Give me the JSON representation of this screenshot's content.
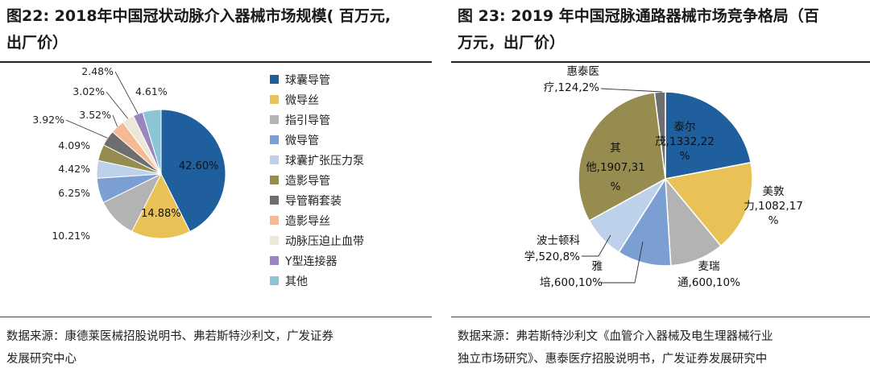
{
  "left": {
    "title_line1": "图22: 2018年中国冠状动脉介入器械市场规模( 百万元,",
    "title_line2": "出厂价）",
    "source_line1": "数据来源：康德莱医械招股说明书、弗若斯特沙利文，广发证券",
    "source_line2": "发展研究中心"
  },
  "right": {
    "title_line1": "图 23:  2019 年中国冠脉通路器械市场竞争格局（百",
    "title_line2": "万元，出厂价）",
    "source_line1": "数据来源：弗若斯特沙利文《血管介入器械及电生理器械行业",
    "source_line2": "独立市场研究》、惠泰医疗招股说明书，广发证券发展研究中"
  },
  "chart_data": [
    {
      "type": "pie",
      "title": "2018年中国冠状动脉介入器械市场规模( 百万元, 出厂价）",
      "legend_position": "right",
      "slices": [
        {
          "label": "球囊导管",
          "value": 42.6,
          "display": "42.60%",
          "color": "#1f5f9e"
        },
        {
          "label": "微导丝",
          "value": 14.88,
          "display": "14.88%",
          "color": "#e8c256"
        },
        {
          "label": "指引导管",
          "value": 10.21,
          "display": "10.21%",
          "color": "#b3b3b3"
        },
        {
          "label": "微导管",
          "value": 6.25,
          "display": "6.25%",
          "color": "#7b9fd3"
        },
        {
          "label": "球囊扩张压力泵",
          "value": 4.42,
          "display": "4.42%",
          "color": "#bdd2ea"
        },
        {
          "label": "造影导管",
          "value": 4.09,
          "display": "4.09%",
          "color": "#968c4f"
        },
        {
          "label": "导管鞘套装",
          "value": 3.92,
          "display": "3.92%",
          "color": "#6e6e6e"
        },
        {
          "label": "造影导丝",
          "value": 3.52,
          "display": "3.52%",
          "color": "#f5b994"
        },
        {
          "label": "动脉压迫止血带",
          "value": 3.02,
          "display": "3.02%",
          "color": "#ece7d6"
        },
        {
          "label": "Y型连接器",
          "value": 2.48,
          "display": "2.48%",
          "color": "#9a86bf"
        },
        {
          "label": "其他",
          "value": 4.61,
          "display": "4.61%",
          "color": "#8cc5d6"
        }
      ]
    },
    {
      "type": "pie",
      "title": "2019 年中国冠脉通路器械市场竞争格局（百万元，出厂价）",
      "slices": [
        {
          "label": "泰尔茂",
          "value": 1332,
          "share": 22,
          "label_lines": [
            "泰尔",
            "茂,1332,22",
            "%"
          ],
          "color": "#1f5f9e"
        },
        {
          "label": "美敦力",
          "value": 1082,
          "share": 17,
          "label_lines": [
            "美敦",
            "力,1082,17",
            "%"
          ],
          "color": "#e8c256"
        },
        {
          "label": "麦瑞通",
          "value": 600,
          "share": 10,
          "label_lines": [
            "麦瑞",
            "通,600,10%"
          ],
          "color": "#b3b3b3"
        },
        {
          "label": "雅培",
          "value": 600,
          "share": 10,
          "label_lines": [
            "雅",
            "培,600,10%"
          ],
          "color": "#7b9fd3"
        },
        {
          "label": "波士顿科学",
          "value": 520,
          "share": 8,
          "label_lines": [
            "波士顿科",
            "学,520,8%"
          ],
          "color": "#bdd2ea"
        },
        {
          "label": "其他",
          "value": 1907,
          "share": 31,
          "label_lines": [
            "其",
            "他,1907,31",
            "%"
          ],
          "color": "#968c4f"
        },
        {
          "label": "惠泰医疗",
          "value": 124,
          "share": 2,
          "label_lines": [
            "惠泰医",
            "疗,124,2%"
          ],
          "color": "#6e6e6e"
        }
      ]
    }
  ]
}
